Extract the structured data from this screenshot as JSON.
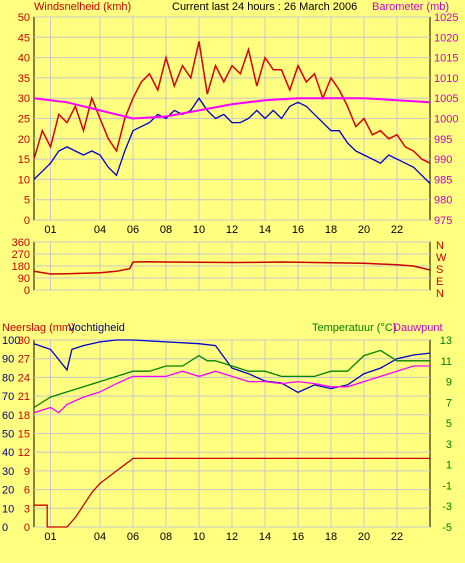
{
  "header": {
    "left_label": "Windsnelheid (kmh)",
    "center_label": "Current last 24 hours : 26 March 2006",
    "right_label": "Barometer (mb)"
  },
  "panel2": {
    "compass_labels": [
      "N",
      "W",
      "S",
      "E",
      "N"
    ]
  },
  "panel3": {
    "left_label_a": "Neerslag (mm)",
    "left_label_b": "Vochtigheid",
    "right_label_a": "Temperatuur (°C)",
    "right_label_b": "Dauwpunt"
  },
  "colors": {
    "background": "#ffff80",
    "plot_background": "#ffff80",
    "border": "#000000",
    "gridline": "#c8c8c8",
    "wind_gust": "#dd0000",
    "wind_speed": "#0000cc",
    "barometer": "#ff00ff",
    "wind_direction": "#cc0000",
    "rain": "#cc0000",
    "humidity": "#0000cc",
    "temperature": "#008000",
    "dewpoint": "#ff00ff",
    "label_red": "#cc0000",
    "label_magenta": "#cc00cc",
    "label_green": "#008000"
  },
  "chart_data": [
    {
      "type": "line",
      "x_ticks": [
        "01",
        "04",
        "06",
        "08",
        "10",
        "12",
        "14",
        "16",
        "18",
        "20",
        "22"
      ],
      "x_range_hours": [
        0,
        24
      ],
      "y_left": {
        "ticks": [
          0,
          5,
          10,
          15,
          20,
          25,
          30,
          35,
          40,
          45,
          50
        ],
        "range": [
          0,
          50
        ]
      },
      "y_right": {
        "ticks": [
          975,
          980,
          985,
          990,
          995,
          1000,
          1005,
          1010,
          1015,
          1020,
          1025
        ],
        "range": [
          975,
          1025
        ]
      },
      "grid": true,
      "series": [
        {
          "name": "Windsnelheid (kmh)",
          "axis": "left",
          "x": [
            0,
            0.5,
            1,
            1.5,
            2,
            2.5,
            3,
            3.5,
            4,
            4.5,
            5,
            5.5,
            6,
            6.5,
            7,
            7.5,
            8,
            8.5,
            9,
            9.5,
            10,
            10.5,
            11,
            11.5,
            12,
            12.5,
            13,
            13.5,
            14,
            14.5,
            15,
            15.5,
            16,
            16.5,
            17,
            17.5,
            18,
            18.5,
            19,
            19.5,
            20,
            20.5,
            21,
            21.5,
            22,
            22.5,
            23,
            23.5,
            24
          ],
          "y": [
            10,
            12,
            14,
            17,
            18,
            17,
            16,
            17,
            16,
            13,
            11,
            17,
            22,
            23,
            24,
            26,
            25,
            27,
            26,
            27,
            30,
            27,
            25,
            26,
            24,
            24,
            25,
            27,
            25,
            27,
            25,
            28,
            29,
            28,
            26,
            24,
            22,
            22,
            19,
            17,
            16,
            15,
            14,
            16,
            15,
            14,
            13,
            11,
            9
          ]
        },
        {
          "name": "Wind gust",
          "axis": "left",
          "x": [
            0,
            0.5,
            1,
            1.5,
            2,
            2.5,
            3,
            3.5,
            4,
            4.5,
            5,
            5.5,
            6,
            6.5,
            7,
            7.5,
            8,
            8.5,
            9,
            9.5,
            10,
            10.5,
            11,
            11.5,
            12,
            12.5,
            13,
            13.5,
            14,
            14.5,
            15,
            15.5,
            16,
            16.5,
            17,
            17.5,
            18,
            18.5,
            19,
            19.5,
            20,
            20.5,
            21,
            21.5,
            22,
            22.5,
            23,
            23.5,
            24
          ],
          "y": [
            15,
            22,
            18,
            26,
            24,
            28,
            22,
            30,
            25,
            20,
            17,
            25,
            30,
            34,
            36,
            32,
            40,
            33,
            38,
            35,
            44,
            31,
            38,
            34,
            38,
            36,
            42,
            33,
            40,
            37,
            37,
            32,
            38,
            34,
            36,
            30,
            35,
            32,
            28,
            23,
            25,
            21,
            22,
            20,
            21,
            18,
            17,
            15,
            14
          ]
        },
        {
          "name": "Barometer (mb)",
          "axis": "right",
          "x": [
            0,
            2,
            4,
            6,
            8,
            10,
            12,
            14,
            16,
            18,
            20,
            22,
            24
          ],
          "y": [
            1005,
            1004,
            1002,
            1000,
            1000.5,
            1002,
            1003.5,
            1004.5,
            1005,
            1005,
            1005,
            1004.5,
            1004
          ]
        }
      ]
    },
    {
      "type": "line",
      "x_ticks": [
        "01",
        "04",
        "06",
        "08",
        "10",
        "12",
        "14",
        "16",
        "18",
        "20",
        "22"
      ],
      "x_range_hours": [
        0,
        24
      ],
      "y_left": {
        "ticks": [
          0,
          90,
          180,
          270,
          360
        ],
        "range": [
          0,
          360
        ]
      },
      "series": [
        {
          "name": "Wind direction",
          "x": [
            0,
            1,
            2,
            3,
            4,
            5,
            5.8,
            6,
            7,
            8,
            10,
            12,
            14,
            15,
            16,
            18,
            20,
            22,
            23,
            24
          ],
          "y": [
            140,
            120,
            122,
            125,
            130,
            140,
            160,
            210,
            212,
            210,
            208,
            206,
            208,
            210,
            208,
            205,
            200,
            190,
            180,
            150
          ]
        }
      ]
    },
    {
      "type": "line",
      "x_ticks": [
        "01",
        "04",
        "06",
        "08",
        "10",
        "12",
        "14",
        "16",
        "18",
        "20",
        "22"
      ],
      "x_range_hours": [
        0,
        24
      ],
      "y_left_rain": {
        "ticks": [
          0,
          3,
          6,
          9,
          12,
          15,
          18,
          21,
          24,
          27,
          30
        ],
        "range": [
          0,
          30
        ]
      },
      "y_left_humidity": {
        "ticks": [
          0,
          10,
          20,
          30,
          40,
          50,
          60,
          70,
          80,
          90,
          100
        ],
        "range": [
          0,
          100
        ]
      },
      "y_right": {
        "ticks": [
          -5,
          -3,
          -1,
          1,
          3,
          5,
          7,
          9,
          11,
          13
        ],
        "range": [
          -5,
          13
        ]
      },
      "series": [
        {
          "name": "Neerslag (mm)",
          "axis": "rain",
          "x": [
            0,
            0.8,
            0.8,
            2,
            2.5,
            3,
            3.5,
            4,
            4.5,
            5,
            5.5,
            6,
            6,
            24
          ],
          "y": [
            3.5,
            3.5,
            0,
            0,
            1.5,
            3.5,
            5.5,
            7,
            8,
            9,
            10,
            11,
            11,
            11
          ]
        },
        {
          "name": "Vochtigheid",
          "axis": "humidity",
          "x": [
            0,
            1,
            2,
            2.3,
            3,
            4,
            5,
            6,
            8,
            10,
            11,
            12,
            13,
            14,
            15,
            16,
            17,
            18,
            19,
            20,
            21,
            22,
            23,
            24
          ],
          "y": [
            98,
            95,
            84,
            95,
            97,
            99,
            100,
            100,
            99,
            98,
            97,
            85,
            82,
            78,
            77,
            72,
            76,
            74,
            76,
            82,
            85,
            90,
            92,
            93
          ]
        },
        {
          "name": "Temperatuur (°C)",
          "axis": "right",
          "x": [
            0,
            1,
            2,
            3,
            4,
            5,
            6,
            7,
            8,
            9,
            10,
            10.5,
            11,
            12,
            13,
            14,
            15,
            16,
            17,
            18,
            19,
            20,
            21,
            22,
            23,
            24
          ],
          "y": [
            6.5,
            7.5,
            8,
            8.5,
            9,
            9.5,
            10,
            10,
            10.5,
            10.5,
            11.5,
            11,
            11,
            10.5,
            10,
            10,
            9.5,
            9.5,
            9.5,
            10,
            10,
            11.5,
            12,
            11,
            11,
            11
          ]
        },
        {
          "name": "Dauwpunt",
          "axis": "right",
          "x": [
            0,
            1,
            1.5,
            2,
            3,
            4,
            5,
            6,
            8,
            9,
            10,
            11,
            12,
            13,
            14,
            15,
            16,
            17,
            18,
            19,
            20,
            21,
            22,
            23,
            24
          ],
          "y": [
            6,
            6.5,
            6,
            6.8,
            7.5,
            8,
            8.8,
            9.5,
            9.5,
            10,
            9.5,
            10,
            9.5,
            9,
            9,
            8.8,
            9,
            8.8,
            8.5,
            8.5,
            9,
            9.5,
            10,
            10.5,
            10.5
          ]
        }
      ]
    }
  ]
}
